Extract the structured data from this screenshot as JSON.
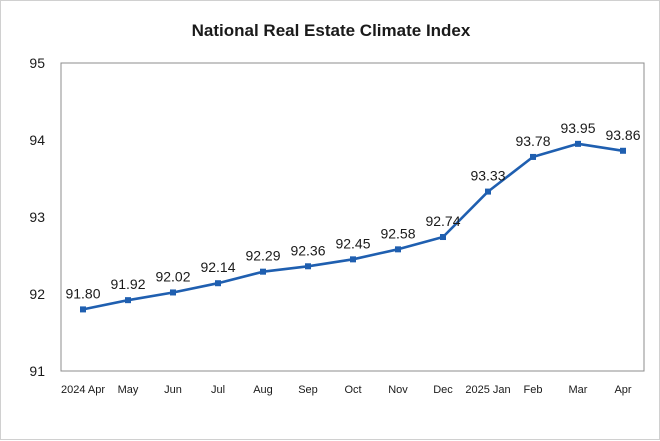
{
  "chart_data": {
    "type": "line",
    "title": "National Real Estate Climate Index",
    "categories": [
      "2024 Apr",
      "May",
      "Jun",
      "Jul",
      "Aug",
      "Sep",
      "Oct",
      "Nov",
      "Dec",
      "2025 Jan",
      "Feb",
      "Mar",
      "Apr"
    ],
    "series": [
      {
        "values": [
          91.8,
          91.92,
          92.02,
          92.14,
          92.29,
          92.36,
          92.45,
          92.58,
          92.74,
          93.33,
          93.78,
          93.95,
          93.86
        ],
        "labels": [
          "91.80",
          "91.92",
          "92.02",
          "92.14",
          "92.29",
          "92.36",
          "92.45",
          "92.58",
          "92.74",
          "93.33",
          "93.78",
          "93.95",
          "93.86"
        ],
        "color": "#1f5fb0"
      }
    ],
    "ylim": [
      91,
      95
    ],
    "yticks": [
      "91",
      "92",
      "93",
      "94",
      "95"
    ],
    "grid": false,
    "legend": "none"
  }
}
